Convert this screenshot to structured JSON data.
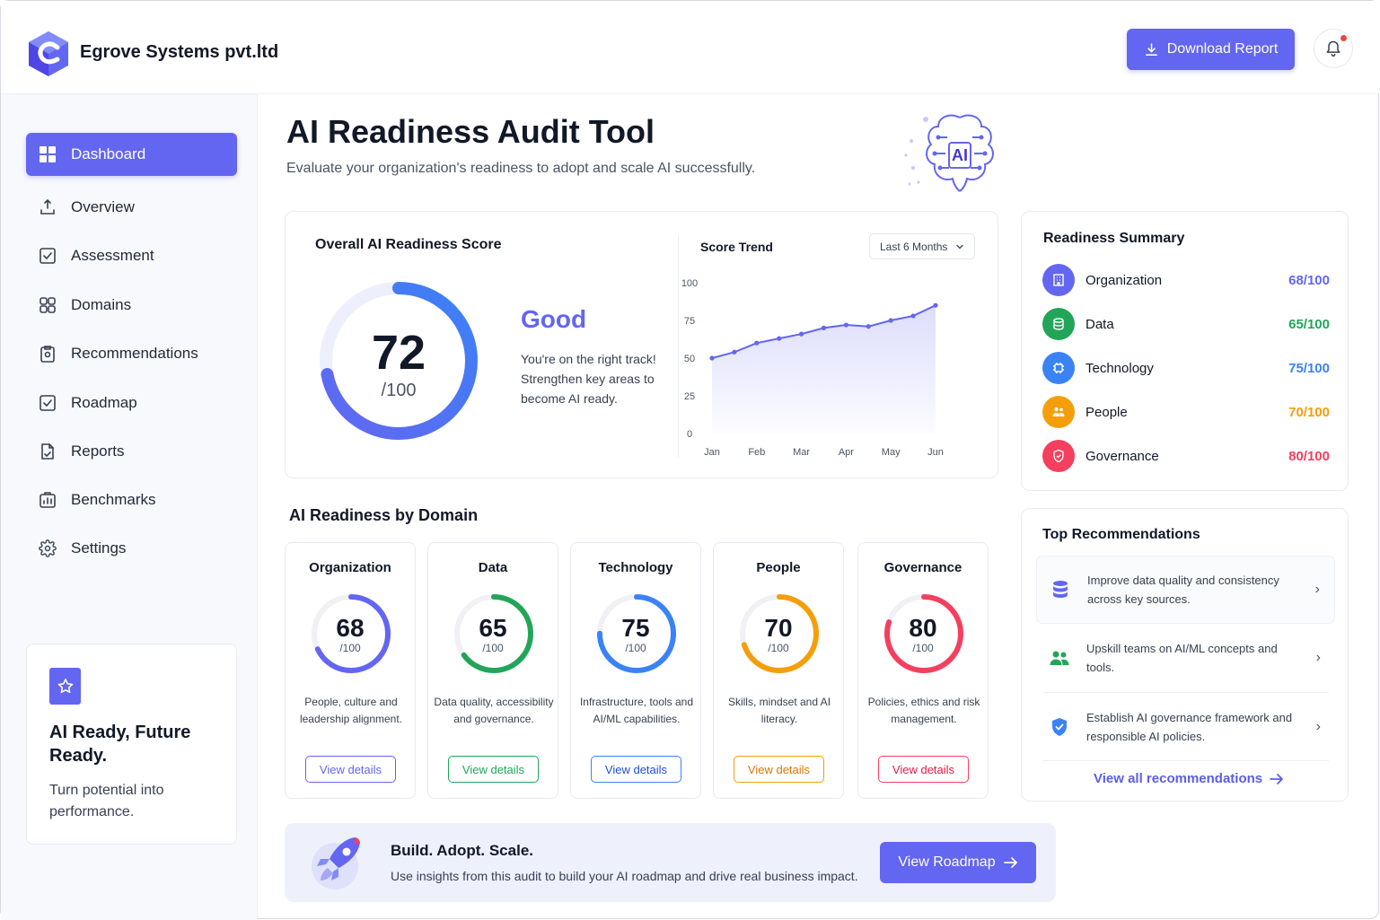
{
  "header": {
    "company_name": "Egrove Systems pvt.ltd",
    "download_label": "Download Report",
    "notifications_unread": true
  },
  "sidebar": {
    "items": [
      {
        "label": "Dashboard",
        "icon": "dashboard-grid-icon",
        "active": true
      },
      {
        "label": "Overview",
        "icon": "overview-icon",
        "active": false
      },
      {
        "label": "Assessment",
        "icon": "checkbox-icon",
        "active": false
      },
      {
        "label": "Domains",
        "icon": "domains-grid-icon",
        "active": false
      },
      {
        "label": "Recommendations",
        "icon": "clipboard-icon",
        "active": false
      },
      {
        "label": "Roadmap",
        "icon": "roadmap-check-icon",
        "active": false
      },
      {
        "label": "Reports",
        "icon": "report-doc-icon",
        "active": false
      },
      {
        "label": "Benchmarks",
        "icon": "benchmark-icon",
        "active": false
      },
      {
        "label": "Settings",
        "icon": "gear-icon",
        "active": false
      }
    ],
    "promo": {
      "title": "AI Ready, Future Ready.",
      "subtitle": "Turn potential into performance."
    }
  },
  "main": {
    "title": "AI Readiness Audit Tool",
    "subtitle": "Evaluate your organization's readiness to adopt and scale AI successfully.",
    "brain_label": "AI"
  },
  "score_card": {
    "title": "Overall AI Readiness Score",
    "score": 72,
    "max_label": "/100",
    "rating": "Good",
    "message": "You're on the right track! Strengthen key areas to become AI ready."
  },
  "chart_data": {
    "type": "area",
    "title": "Score Trend",
    "range_label": "Last 6 Months",
    "categories": [
      "Jan",
      "Feb",
      "Mar",
      "Apr",
      "May",
      "Jun"
    ],
    "x": [
      0,
      0.5,
      1,
      1.5,
      2,
      2.5,
      3,
      3.5,
      4,
      4.5,
      5
    ],
    "y": [
      50,
      54,
      60,
      63,
      66,
      70,
      72,
      71,
      75,
      78,
      85
    ],
    "yticks": [
      0,
      25,
      50,
      75,
      100
    ],
    "ylim": [
      0,
      100
    ],
    "grid": false,
    "color": "#6366f1"
  },
  "summary": {
    "title": "Readiness Summary",
    "items": [
      {
        "label": "Organization",
        "score": "68/100",
        "color": "#6366f1",
        "icon": "building-icon"
      },
      {
        "label": "Data",
        "score": "65/100",
        "color": "#22a559",
        "icon": "database-icon"
      },
      {
        "label": "Technology",
        "score": "75/100",
        "color": "#3b82f6",
        "icon": "chip-icon"
      },
      {
        "label": "People",
        "score": "70/100",
        "color": "#f59e0b",
        "icon": "people-icon"
      },
      {
        "label": "Governance",
        "score": "80/100",
        "color": "#f43f5e",
        "icon": "shield-icon"
      }
    ]
  },
  "domains": {
    "title": "AI Readiness by Domain",
    "items": [
      {
        "name": "Organization",
        "score": "68",
        "value": 68,
        "max": "/100",
        "desc": "People, culture and leadership alignment.",
        "color": "#6366f1",
        "button": "View details"
      },
      {
        "name": "Data",
        "score": "65",
        "value": 65,
        "max": "/100",
        "desc": "Data quality, accessibility and governance.",
        "color": "#22a559",
        "button": "View details"
      },
      {
        "name": "Technology",
        "score": "75",
        "value": 75,
        "max": "/100",
        "desc": "Infrastructure, tools and AI/ML capabilities.",
        "color": "#3b82f6",
        "button": "View details"
      },
      {
        "name": "People",
        "score": "70",
        "value": 70,
        "max": "/100",
        "desc": "Skills, mindset and AI literacy.",
        "color": "#f59e0b",
        "button": "View details"
      },
      {
        "name": "Governance",
        "score": "80",
        "value": 80,
        "max": "/100",
        "desc": "Policies, ethics and risk management.",
        "color": "#f43f5e",
        "button": "View details"
      }
    ]
  },
  "recommendations": {
    "title": "Top Recommendations",
    "items": [
      {
        "text": "Improve data quality and consistency across key sources.",
        "icon": "database-icon",
        "color": "#6366f1"
      },
      {
        "text": "Upskill teams on AI/ML concepts and tools.",
        "icon": "people-icon",
        "color": "#22a559"
      },
      {
        "text": "Establish AI governance framework and responsible AI policies.",
        "icon": "shield-check-icon",
        "color": "#3b82f6"
      }
    ],
    "link": "View all recommendations"
  },
  "banner": {
    "title": "Build. Adopt. Scale.",
    "subtitle": "Use insights from this audit to build your AI roadmap and drive real business impact.",
    "button": "View Roadmap"
  }
}
